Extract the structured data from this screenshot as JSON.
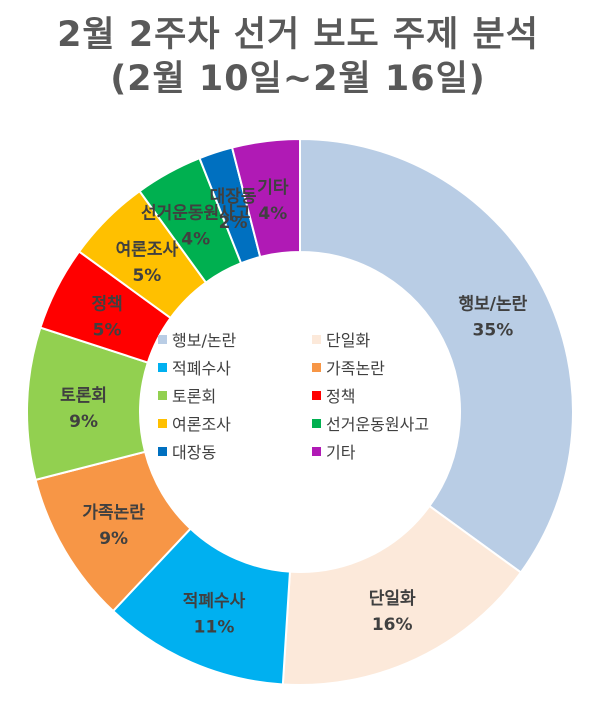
{
  "chart_data": {
    "type": "pie",
    "donut": true,
    "title": "2월 2주차 선거 보도 주제 분석",
    "subtitle": "(2월 10일~2월 16일)",
    "legend_position": "center",
    "slices": [
      {
        "name": "행보/논란",
        "value": 35,
        "label": "35%",
        "color": "#B9CDE5"
      },
      {
        "name": "단일화",
        "value": 16,
        "label": "16%",
        "color": "#FCE9DA"
      },
      {
        "name": "적폐수사",
        "value": 11,
        "label": "11%",
        "color": "#00B0F0"
      },
      {
        "name": "가족논란",
        "value": 9,
        "label": "9%",
        "color": "#F79646"
      },
      {
        "name": "토론회",
        "value": 9,
        "label": "9%",
        "color": "#92D050"
      },
      {
        "name": "정책",
        "value": 5,
        "label": "5%",
        "color": "#FF0000"
      },
      {
        "name": "여론조사",
        "value": 5,
        "label": "5%",
        "color": "#FFC000"
      },
      {
        "name": "선거운동원사고",
        "value": 4,
        "label": "4%",
        "color": "#00B050"
      },
      {
        "name": "대장동",
        "value": 2,
        "label": "2%",
        "color": "#0070C0"
      },
      {
        "name": "기타",
        "value": 4,
        "label": "4%",
        "color": "#B01AB5"
      }
    ]
  }
}
